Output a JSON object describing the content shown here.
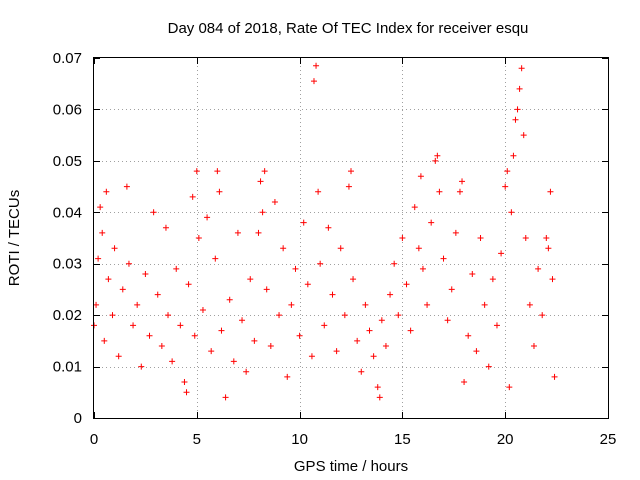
{
  "chart_data": {
    "type": "scatter",
    "title": "Day 084 of 2018, Rate Of TEC Index for receiver esqu",
    "xlabel": "GPS time / hours",
    "ylabel": "ROTI / TECUs",
    "xlim": [
      0,
      25
    ],
    "ylim": [
      0,
      0.07
    ],
    "xticks": [
      0,
      5,
      10,
      15,
      20,
      25
    ],
    "xtick_labels": [
      "0",
      "5",
      "10",
      "15",
      "20",
      "25"
    ],
    "yticks": [
      0,
      0.01,
      0.02,
      0.03,
      0.04,
      0.05,
      0.06,
      0.07
    ],
    "ytick_labels": [
      "0",
      "0.01",
      "0.02",
      "0.03",
      "0.04",
      "0.05",
      "0.06",
      "0.07"
    ],
    "grid": true,
    "marker": "+",
    "color": "#ff0000",
    "series": [
      {
        "name": "ROTI",
        "points": [
          [
            0.0,
            0.018
          ],
          [
            0.1,
            0.022
          ],
          [
            0.2,
            0.031
          ],
          [
            0.3,
            0.041
          ],
          [
            0.4,
            0.036
          ],
          [
            0.5,
            0.015
          ],
          [
            0.6,
            0.044
          ],
          [
            0.7,
            0.027
          ],
          [
            0.9,
            0.02
          ],
          [
            1.0,
            0.033
          ],
          [
            1.2,
            0.012
          ],
          [
            1.4,
            0.025
          ],
          [
            1.6,
            0.045
          ],
          [
            1.7,
            0.03
          ],
          [
            1.9,
            0.018
          ],
          [
            2.1,
            0.022
          ],
          [
            2.3,
            0.01
          ],
          [
            2.5,
            0.028
          ],
          [
            2.7,
            0.016
          ],
          [
            2.9,
            0.04
          ],
          [
            3.1,
            0.024
          ],
          [
            3.3,
            0.014
          ],
          [
            3.5,
            0.037
          ],
          [
            3.6,
            0.02
          ],
          [
            3.8,
            0.011
          ],
          [
            4.0,
            0.029
          ],
          [
            4.2,
            0.018
          ],
          [
            4.4,
            0.007
          ],
          [
            4.5,
            0.005
          ],
          [
            4.6,
            0.026
          ],
          [
            4.8,
            0.043
          ],
          [
            4.9,
            0.016
          ],
          [
            5.0,
            0.048
          ],
          [
            5.1,
            0.035
          ],
          [
            5.3,
            0.021
          ],
          [
            5.5,
            0.039
          ],
          [
            5.7,
            0.013
          ],
          [
            5.9,
            0.031
          ],
          [
            6.0,
            0.048
          ],
          [
            6.1,
            0.044
          ],
          [
            6.2,
            0.017
          ],
          [
            6.4,
            0.004
          ],
          [
            6.6,
            0.023
          ],
          [
            6.8,
            0.011
          ],
          [
            7.0,
            0.036
          ],
          [
            7.2,
            0.019
          ],
          [
            7.4,
            0.009
          ],
          [
            7.6,
            0.027
          ],
          [
            7.8,
            0.015
          ],
          [
            8.0,
            0.036
          ],
          [
            8.1,
            0.046
          ],
          [
            8.2,
            0.04
          ],
          [
            8.3,
            0.048
          ],
          [
            8.4,
            0.025
          ],
          [
            8.6,
            0.014
          ],
          [
            8.8,
            0.042
          ],
          [
            9.0,
            0.02
          ],
          [
            9.2,
            0.033
          ],
          [
            9.4,
            0.008
          ],
          [
            9.6,
            0.022
          ],
          [
            9.8,
            0.029
          ],
          [
            10.0,
            0.016
          ],
          [
            10.2,
            0.038
          ],
          [
            10.4,
            0.026
          ],
          [
            10.6,
            0.012
          ],
          [
            10.7,
            0.0655
          ],
          [
            10.8,
            0.0685
          ],
          [
            10.9,
            0.044
          ],
          [
            11.0,
            0.03
          ],
          [
            11.2,
            0.018
          ],
          [
            11.4,
            0.037
          ],
          [
            11.6,
            0.024
          ],
          [
            11.8,
            0.013
          ],
          [
            12.0,
            0.033
          ],
          [
            12.2,
            0.02
          ],
          [
            12.4,
            0.045
          ],
          [
            12.5,
            0.048
          ],
          [
            12.6,
            0.027
          ],
          [
            12.8,
            0.015
          ],
          [
            13.0,
            0.009
          ],
          [
            13.2,
            0.022
          ],
          [
            13.4,
            0.017
          ],
          [
            13.6,
            0.012
          ],
          [
            13.8,
            0.006
          ],
          [
            13.9,
            0.004
          ],
          [
            14.0,
            0.019
          ],
          [
            14.2,
            0.014
          ],
          [
            14.4,
            0.024
          ],
          [
            14.6,
            0.03
          ],
          [
            14.8,
            0.02
          ],
          [
            15.0,
            0.035
          ],
          [
            15.2,
            0.026
          ],
          [
            15.4,
            0.017
          ],
          [
            15.6,
            0.041
          ],
          [
            15.8,
            0.033
          ],
          [
            15.9,
            0.047
          ],
          [
            16.0,
            0.029
          ],
          [
            16.2,
            0.022
          ],
          [
            16.4,
            0.038
          ],
          [
            16.6,
            0.05
          ],
          [
            16.7,
            0.051
          ],
          [
            16.8,
            0.044
          ],
          [
            17.0,
            0.031
          ],
          [
            17.2,
            0.019
          ],
          [
            17.4,
            0.025
          ],
          [
            17.6,
            0.036
          ],
          [
            17.8,
            0.044
          ],
          [
            17.9,
            0.046
          ],
          [
            18.0,
            0.007
          ],
          [
            18.2,
            0.016
          ],
          [
            18.4,
            0.028
          ],
          [
            18.6,
            0.013
          ],
          [
            18.8,
            0.035
          ],
          [
            19.0,
            0.022
          ],
          [
            19.2,
            0.01
          ],
          [
            19.4,
            0.027
          ],
          [
            19.6,
            0.018
          ],
          [
            19.8,
            0.032
          ],
          [
            20.0,
            0.045
          ],
          [
            20.1,
            0.048
          ],
          [
            20.2,
            0.006
          ],
          [
            20.3,
            0.04
          ],
          [
            20.4,
            0.051
          ],
          [
            20.5,
            0.058
          ],
          [
            20.6,
            0.06
          ],
          [
            20.7,
            0.064
          ],
          [
            20.8,
            0.068
          ],
          [
            20.9,
            0.055
          ],
          [
            21.0,
            0.035
          ],
          [
            21.2,
            0.022
          ],
          [
            21.4,
            0.014
          ],
          [
            21.6,
            0.029
          ],
          [
            21.8,
            0.02
          ],
          [
            22.0,
            0.035
          ],
          [
            22.1,
            0.033
          ],
          [
            22.2,
            0.044
          ],
          [
            22.3,
            0.027
          ],
          [
            22.4,
            0.008
          ]
        ]
      }
    ]
  }
}
